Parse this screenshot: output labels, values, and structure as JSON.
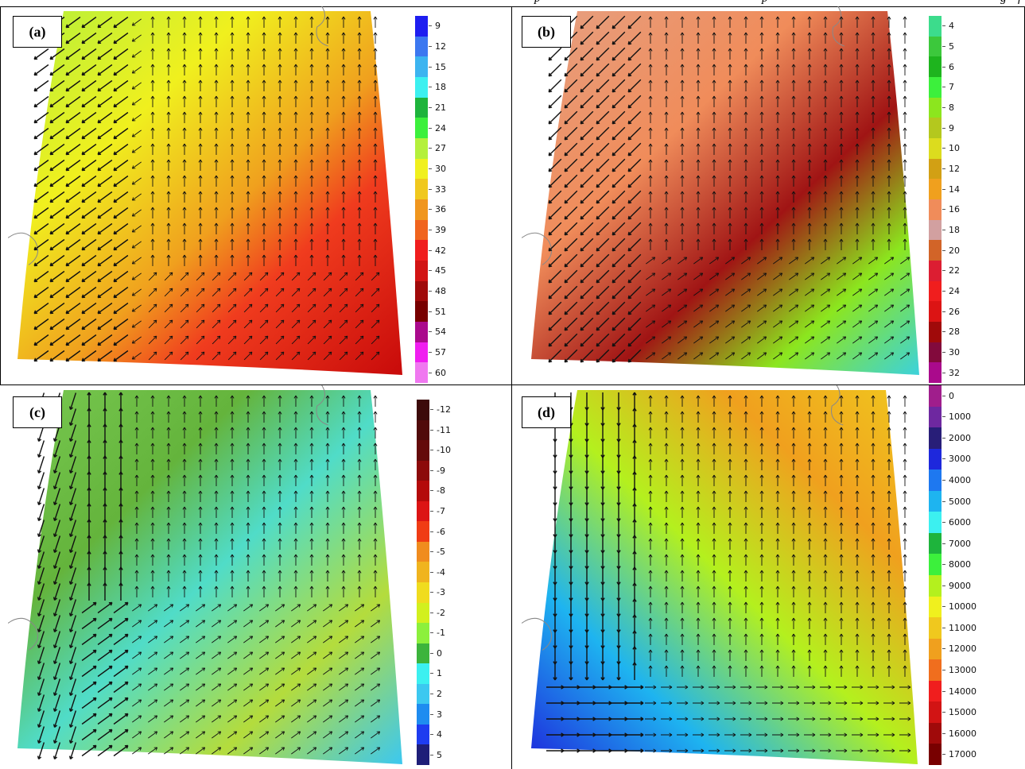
{
  "header": {
    "text_left": "p",
    "text_mid": "p",
    "text_right": "g",
    "text_far": "f"
  },
  "panels": [
    {
      "id": "a",
      "label": "(a)",
      "colorbar": {
        "labels": [
          "9",
          "12",
          "15",
          "18",
          "21",
          "24",
          "27",
          "30",
          "33",
          "36",
          "39",
          "42",
          "45",
          "48",
          "51",
          "54",
          "57",
          "60"
        ],
        "colors": [
          "#1e1ef0",
          "#3c78f0",
          "#3cb4f0",
          "#3cf0f0",
          "#1eb43c",
          "#3cf03c",
          "#b4f03c",
          "#f0f01e",
          "#f0c81e",
          "#f0961e",
          "#f0641e",
          "#f01e1e",
          "#d21414",
          "#a00a0a",
          "#780000",
          "#aa0a8c",
          "#f01ef0",
          "#f078f0"
        ]
      },
      "fields": {
        "colors": [
          "#b4f03c",
          "#f0f01e",
          "#f0a01e",
          "#f03c1e",
          "#c80a0a"
        ]
      }
    },
    {
      "id": "b",
      "label": "(b)",
      "colorbar": {
        "labels": [
          "4",
          "5",
          "6",
          "7",
          "8",
          "9",
          "10",
          "12",
          "14",
          "16",
          "18",
          "20",
          "22",
          "24",
          "26",
          "28",
          "30",
          "32"
        ],
        "colors": [
          "#3cdc8c",
          "#3cc83c",
          "#1eb41e",
          "#3cf03c",
          "#8ce61e",
          "#b4c81e",
          "#dcdc1e",
          "#d2a014",
          "#f0a01e",
          "#f08c5a",
          "#d2a0a0",
          "#d26428",
          "#dc1e32",
          "#f01e1e",
          "#dc1414",
          "#a00a0a",
          "#820a3c",
          "#aa0a8c"
        ]
      },
      "fields": {
        "colors": [
          "#e6a082",
          "#f08c5a",
          "#a01414",
          "#8ce61e",
          "#3cd2dc"
        ]
      }
    },
    {
      "id": "c",
      "label": "(c)",
      "colorbar": {
        "labels": [
          "-12",
          "-11",
          "-10",
          "-9",
          "-8",
          "-7",
          "-6",
          "-5",
          "-4",
          "-3",
          "-2",
          "-1",
          "0",
          "1",
          "2",
          "3",
          "4",
          "5"
        ],
        "colors": [
          "#3c0a0a",
          "#500a0a",
          "#640a0a",
          "#8c0a0a",
          "#b40a0a",
          "#dc1414",
          "#f03c14",
          "#f08c1e",
          "#f0b41e",
          "#f0dc1e",
          "#d2f01e",
          "#8cf03c",
          "#3cb43c",
          "#3cf0f0",
          "#3cc8f0",
          "#1e8cf0",
          "#1e3cf0",
          "#1e1e78"
        ]
      },
      "fields": {
        "colors": [
          "#78c850",
          "#64b43c",
          "#50dcc8",
          "#b4dc3c",
          "#3cc8f0"
        ]
      }
    },
    {
      "id": "d",
      "label": "(d)",
      "colorbar": {
        "labels": [
          "0",
          "1000",
          "2000",
          "3000",
          "4000",
          "5000",
          "6000",
          "7000",
          "8000",
          "9000",
          "10000",
          "11000",
          "12000",
          "13000",
          "14000",
          "15000",
          "16000",
          "17000"
        ],
        "colors": [
          "#a01e8c",
          "#6e28a0",
          "#281e78",
          "#1e28dc",
          "#1e78f0",
          "#1eb4f0",
          "#3cf0f0",
          "#1eb43c",
          "#3cf03c",
          "#b4f01e",
          "#f0f01e",
          "#f0c81e",
          "#f0a01e",
          "#f06e1e",
          "#f01e1e",
          "#d21414",
          "#a00a0a",
          "#780000"
        ]
      },
      "fields": {
        "colors": [
          "#f0c81e",
          "#f0a01e",
          "#b4f01e",
          "#1eb4f0",
          "#1e28dc"
        ]
      }
    }
  ]
}
